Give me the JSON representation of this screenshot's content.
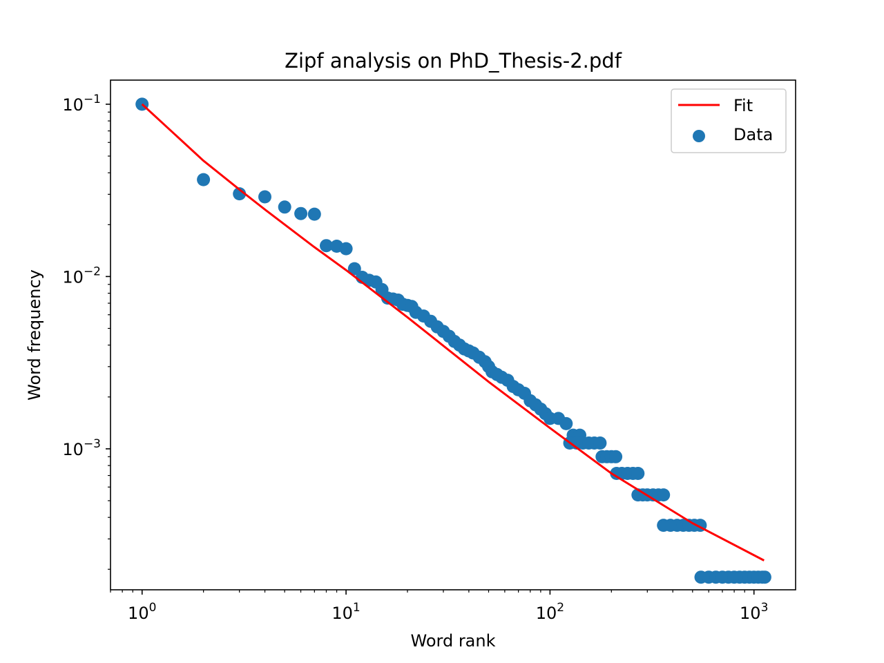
{
  "chart_data": {
    "type": "scatter",
    "title": "Zipf analysis on PhD_Thesis-2.pdf",
    "xlabel": "Word rank",
    "ylabel": "Word frequency",
    "xscale": "log",
    "yscale": "log",
    "xlim": [
      0.7,
      1600
    ],
    "ylim": [
      0.000152,
      0.138
    ],
    "x_ticks": [
      {
        "base": "10",
        "exp": "0",
        "value": 1
      },
      {
        "base": "10",
        "exp": "1",
        "value": 10
      },
      {
        "base": "10",
        "exp": "2",
        "value": 100
      },
      {
        "base": "10",
        "exp": "3",
        "value": 1000
      }
    ],
    "y_ticks": [
      {
        "base": "10",
        "exp": "−1",
        "value": 0.1
      },
      {
        "base": "10",
        "exp": "−2",
        "value": 0.01
      },
      {
        "base": "10",
        "exp": "−3",
        "value": 0.001
      }
    ],
    "grid": false,
    "legend": {
      "placement": "top-right",
      "entries": [
        "Fit",
        "Data"
      ]
    },
    "colors": {
      "fit": "#ff0000",
      "data": "#1f77b4"
    },
    "series": [
      {
        "name": "Fit",
        "kind": "line",
        "x": [
          1,
          2,
          3,
          4,
          7,
          10,
          20,
          50,
          100,
          200,
          500,
          1120
        ],
        "y": [
          0.1,
          0.047,
          0.032,
          0.0245,
          0.0148,
          0.0109,
          0.0058,
          0.00245,
          0.00132,
          0.00072,
          0.00037,
          0.000225
        ]
      },
      {
        "name": "Data",
        "kind": "scatter",
        "points": [
          [
            1,
            0.1
          ],
          [
            2,
            0.0365
          ],
          [
            3,
            0.0302
          ],
          [
            4,
            0.029
          ],
          [
            5,
            0.0253
          ],
          [
            6,
            0.0232
          ],
          [
            7,
            0.023
          ],
          [
            8,
            0.0151
          ],
          [
            9,
            0.015
          ],
          [
            10,
            0.0145
          ],
          [
            11,
            0.0111
          ],
          [
            12,
            0.0099
          ],
          [
            13,
            0.0095
          ],
          [
            14,
            0.0093
          ],
          [
            15,
            0.0084
          ],
          [
            16,
            0.0075
          ],
          [
            17,
            0.0074
          ],
          [
            18,
            0.0073
          ],
          [
            19,
            0.0069
          ],
          [
            20,
            0.0068
          ],
          [
            21,
            0.0067
          ],
          [
            22,
            0.0062
          ],
          [
            24,
            0.0059
          ],
          [
            26,
            0.0055
          ],
          [
            28,
            0.0051
          ],
          [
            30,
            0.0048
          ],
          [
            32,
            0.0045
          ],
          [
            34,
            0.0042
          ],
          [
            36,
            0.004
          ],
          [
            38,
            0.0038
          ],
          [
            40,
            0.0037
          ],
          [
            42,
            0.0036
          ],
          [
            45,
            0.0034
          ],
          [
            48,
            0.0032
          ],
          [
            50,
            0.003
          ],
          [
            52,
            0.0028
          ],
          [
            55,
            0.0027
          ],
          [
            58,
            0.0026
          ],
          [
            62,
            0.0025
          ],
          [
            66,
            0.0023
          ],
          [
            70,
            0.0022
          ],
          [
            75,
            0.0021
          ],
          [
            80,
            0.0019
          ],
          [
            85,
            0.0018
          ],
          [
            90,
            0.0017
          ],
          [
            95,
            0.0016
          ],
          [
            100,
            0.0015
          ],
          [
            110,
            0.0015
          ],
          [
            120,
            0.0014
          ],
          [
            130,
            0.0012
          ],
          [
            140,
            0.0012
          ],
          [
            125,
            0.00108
          ],
          [
            135,
            0.00108
          ],
          [
            145,
            0.00108
          ],
          [
            155,
            0.00108
          ],
          [
            165,
            0.00108
          ],
          [
            176,
            0.00108
          ],
          [
            180,
            0.0009
          ],
          [
            190,
            0.0009
          ],
          [
            200,
            0.0009
          ],
          [
            210,
            0.0009
          ],
          [
            212,
            0.00072
          ],
          [
            225,
            0.00072
          ],
          [
            240,
            0.00072
          ],
          [
            255,
            0.00072
          ],
          [
            270,
            0.00072
          ],
          [
            270,
            0.00054
          ],
          [
            285,
            0.00054
          ],
          [
            300,
            0.00054
          ],
          [
            320,
            0.00054
          ],
          [
            340,
            0.00054
          ],
          [
            360,
            0.00054
          ],
          [
            360,
            0.00036
          ],
          [
            390,
            0.00036
          ],
          [
            420,
            0.00036
          ],
          [
            450,
            0.00036
          ],
          [
            480,
            0.00036
          ],
          [
            510,
            0.00036
          ],
          [
            545,
            0.00036
          ],
          [
            550,
            0.00018
          ],
          [
            600,
            0.00018
          ],
          [
            650,
            0.00018
          ],
          [
            700,
            0.00018
          ],
          [
            750,
            0.00018
          ],
          [
            800,
            0.00018
          ],
          [
            850,
            0.00018
          ],
          [
            900,
            0.00018
          ],
          [
            950,
            0.00018
          ],
          [
            1000,
            0.00018
          ],
          [
            1050,
            0.00018
          ],
          [
            1100,
            0.00018
          ],
          [
            1130,
            0.00018
          ]
        ]
      }
    ]
  }
}
